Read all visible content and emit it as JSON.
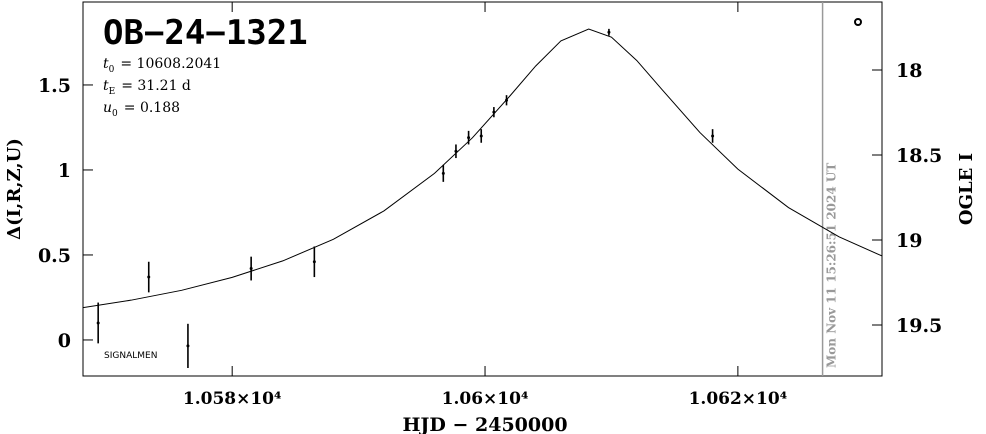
{
  "chart_data": {
    "type": "scatter",
    "title": "OB−24−1321",
    "parameters": [
      {
        "symbol": "t",
        "sub": "0",
        "text": "= 10608.2041"
      },
      {
        "symbol": "t",
        "sub": "E",
        "text": "= 31.21 d"
      },
      {
        "symbol": "u",
        "sub": "0",
        "text": "= 0.188"
      }
    ],
    "source_label": "SIGNALMEN",
    "x_label": "HJD − 2450000",
    "y_label": "Δ(I,R,Z,U)",
    "y2_label": "OGLE I",
    "xlim": [
      10568.2,
      10631.4
    ],
    "xticks": [
      {
        "value": 10580,
        "label": "1.058×10⁴"
      },
      {
        "value": 10600,
        "label": "1.06×10⁴"
      },
      {
        "value": 10620,
        "label": "1.062×10⁴"
      }
    ],
    "ylim": [
      -0.212,
      1.988
    ],
    "yticks": [
      0,
      0.5,
      1,
      1.5
    ],
    "y2lim": [
      19.8,
      17.6
    ],
    "y2ticks": [
      18,
      18.5,
      19,
      19.5
    ],
    "series": [
      {
        "color": "#000000",
        "x": [
          10569.4,
          10573.4,
          10576.5,
          10581.5,
          10586.5,
          10596.7,
          10597.7,
          10598.7,
          10599.7,
          10600.7,
          10601.7,
          10609.8,
          10618.0
        ],
        "values": [
          0.1,
          0.37,
          -0.035,
          0.42,
          0.46,
          0.98,
          1.11,
          1.19,
          1.2,
          1.34,
          1.41,
          1.81,
          1.2
        ],
        "errors": [
          0.12,
          0.09,
          0.13,
          0.07,
          0.09,
          0.05,
          0.04,
          0.04,
          0.04,
          0.03,
          0.03,
          0.02,
          0.04
        ]
      }
    ],
    "model": {
      "color": "#000000",
      "x": [
        10568.2,
        10572,
        10576,
        10580,
        10584,
        10588,
        10592,
        10596,
        10599,
        10602,
        10604,
        10606,
        10608.2,
        10610,
        10612,
        10614,
        10617,
        10620,
        10624,
        10628,
        10631.4
      ],
      "values": [
        0.19,
        0.234,
        0.292,
        0.368,
        0.465,
        0.592,
        0.759,
        0.98,
        1.189,
        1.438,
        1.611,
        1.759,
        1.829,
        1.781,
        1.644,
        1.473,
        1.22,
        1.005,
        0.779,
        0.607,
        0.494
      ]
    },
    "now_line": {
      "x": 10626.7,
      "label": "Mon Nov 11 15:26:51 2024 UT",
      "color": "#999999"
    }
  }
}
